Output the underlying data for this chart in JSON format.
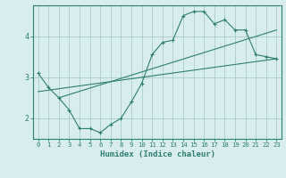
{
  "xlabel": "Humidex (Indice chaleur)",
  "bg_color": "#d8eeee",
  "grid_color": "#aacccc",
  "line_color": "#2e7d72",
  "xlim": [
    -0.5,
    23.5
  ],
  "ylim": [
    1.5,
    4.75
  ],
  "yticks": [
    2,
    3,
    4
  ],
  "xticks": [
    0,
    1,
    2,
    3,
    4,
    5,
    6,
    7,
    8,
    9,
    10,
    11,
    12,
    13,
    14,
    15,
    16,
    17,
    18,
    19,
    20,
    21,
    22,
    23
  ],
  "series1_x": [
    0,
    1,
    2,
    3,
    4,
    5,
    6,
    7,
    8,
    9,
    10,
    11,
    12,
    13,
    14,
    15,
    16,
    17,
    18,
    19,
    20,
    21,
    22,
    23
  ],
  "series1_y": [
    3.1,
    2.75,
    2.5,
    2.2,
    1.75,
    1.75,
    1.65,
    1.85,
    2.0,
    2.4,
    2.85,
    3.55,
    3.85,
    3.9,
    4.5,
    4.6,
    4.6,
    4.3,
    4.4,
    4.15,
    4.15,
    3.55,
    3.5,
    3.45
  ],
  "series2_x": [
    0,
    23
  ],
  "series2_y": [
    2.65,
    3.45
  ],
  "series3_x": [
    2,
    23
  ],
  "series3_y": [
    2.5,
    4.15
  ]
}
